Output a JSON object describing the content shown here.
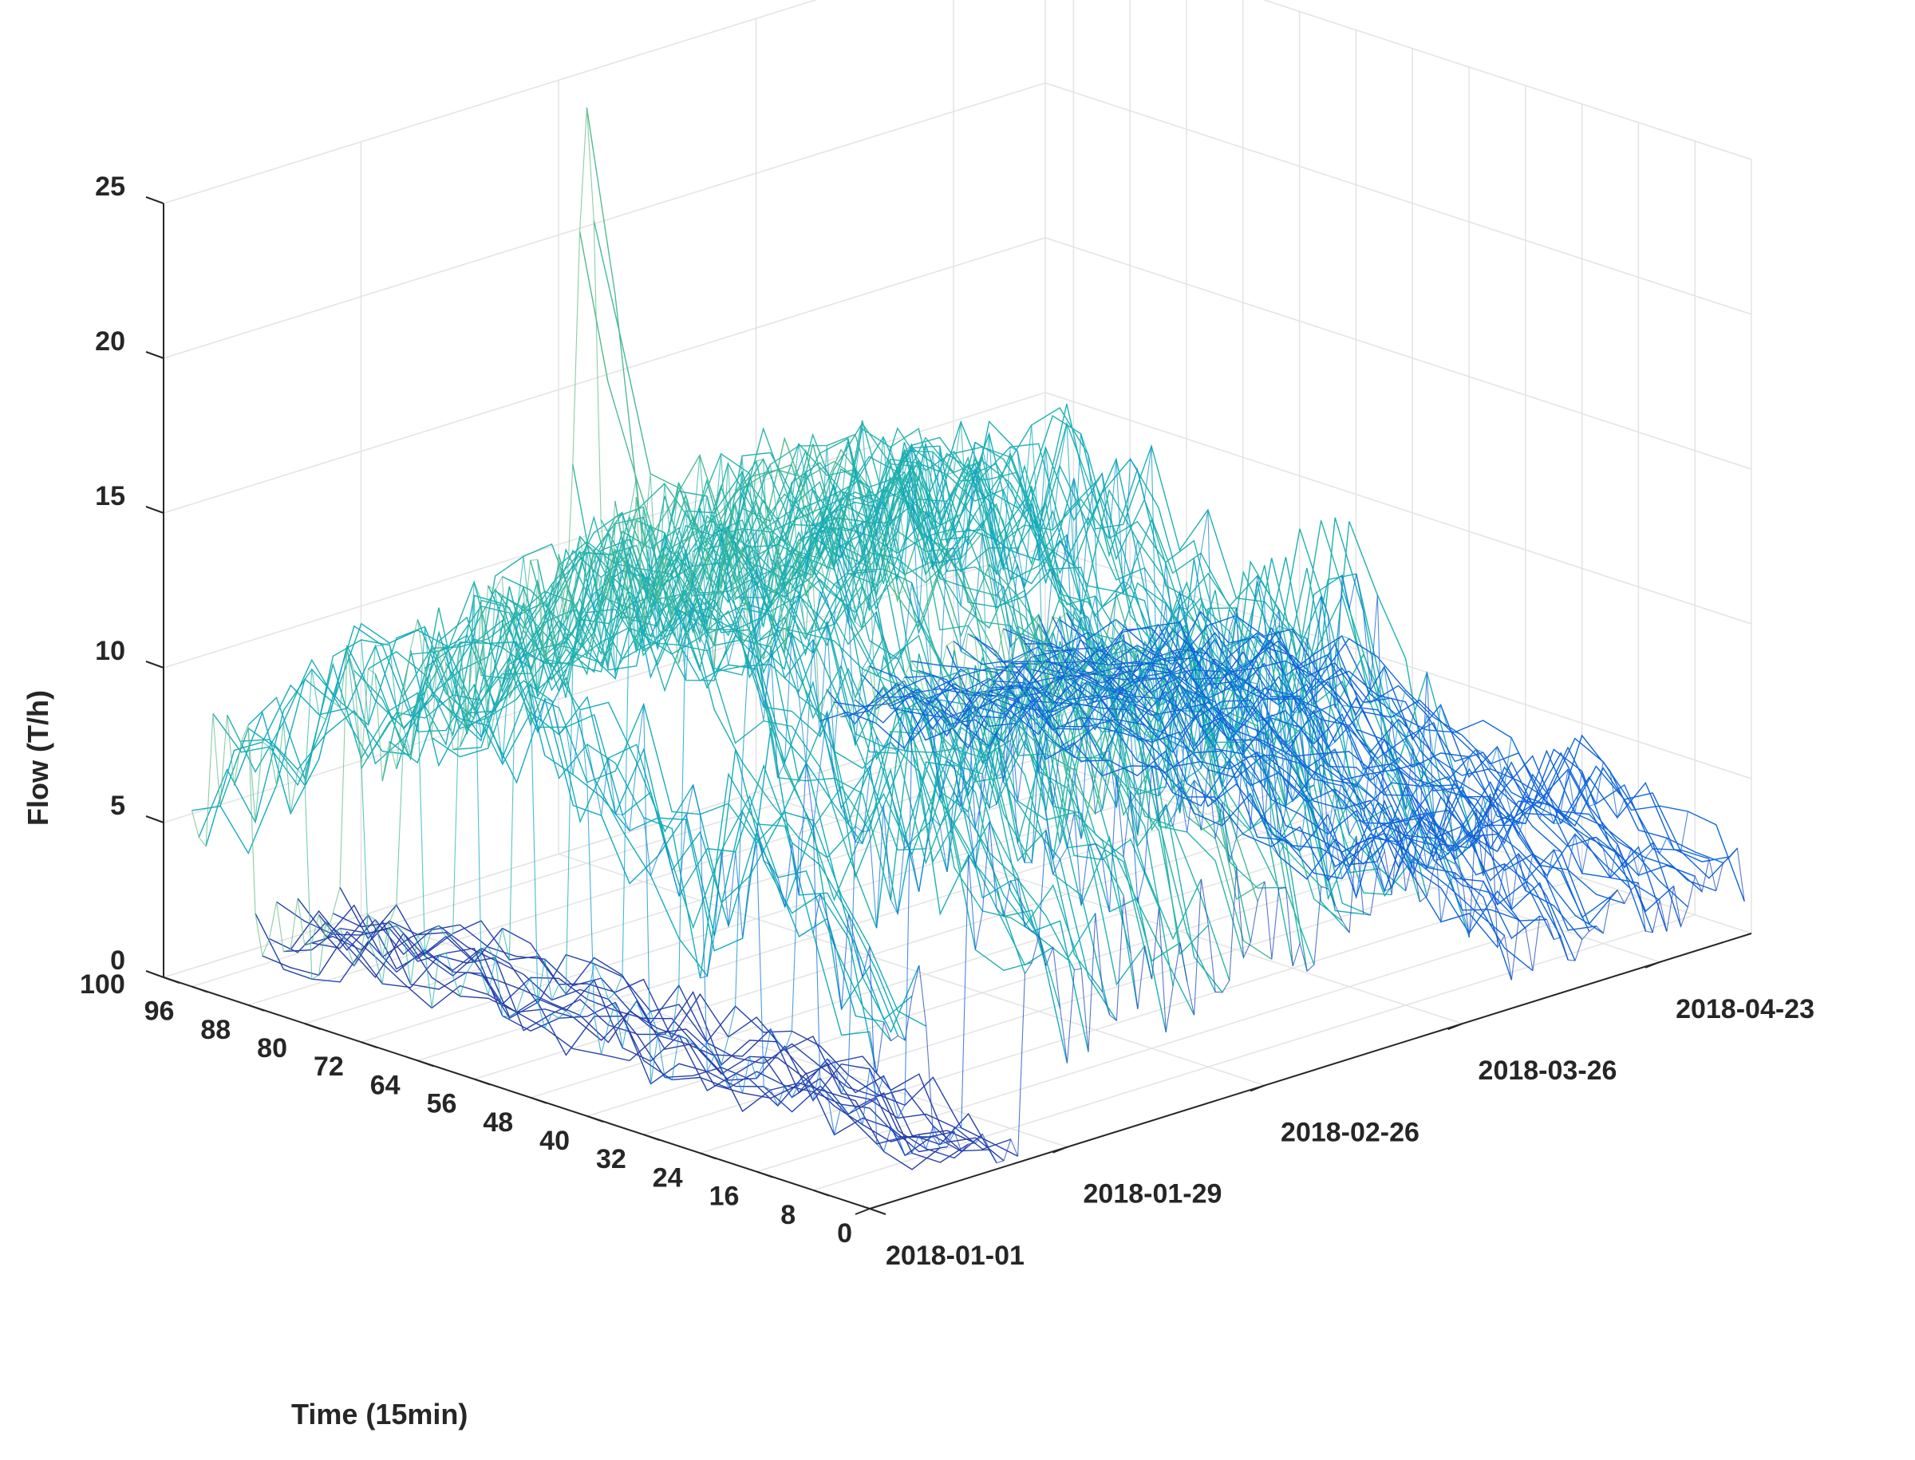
{
  "chart_data": {
    "type": "surface",
    "style": "mesh",
    "colormap": "parula",
    "grid": true,
    "axes": {
      "x": {
        "label": "",
        "type": "date",
        "range": [
          "2018-01-01",
          "2018-05-06"
        ],
        "ticks": [
          "2018-01-01",
          "2018-01-29",
          "2018-02-26",
          "2018-03-26",
          "2018-04-23"
        ]
      },
      "y": {
        "label": "Time (15min)",
        "range": [
          0,
          100
        ],
        "ticks": [
          "0",
          "8",
          "16",
          "24",
          "32",
          "40",
          "48",
          "56",
          "64",
          "72",
          "80",
          "88",
          "96",
          "100"
        ]
      },
      "z": {
        "label": "Flow (T/h)",
        "range": [
          0,
          25
        ],
        "ticks": [
          "0",
          "5",
          "10",
          "15",
          "20",
          "25"
        ]
      }
    },
    "features": {
      "peak": {
        "date": "2018-02-26",
        "slot": 96,
        "flow": 24.5
      },
      "low_period": {
        "start": "2018-01-10",
        "end": "2018-01-22",
        "flow": 1.5
      },
      "plateau_flow": 13,
      "late_period_flow": 4.5
    }
  }
}
